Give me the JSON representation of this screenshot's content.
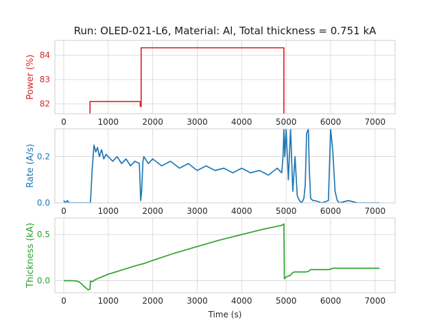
{
  "title": "Run: OLED-021-L6, Material: Al, Total thickness = 0.751 kA",
  "xlabel": "Time (s)",
  "chart_data": [
    {
      "type": "line",
      "ylabel": "Power (%)",
      "color": "#d62728",
      "xlim": [
        -200,
        7450
      ],
      "ylim": [
        81.6,
        84.6
      ],
      "xticks": [
        0,
        1000,
        2000,
        3000,
        4000,
        5000,
        6000,
        7000
      ],
      "yticks": [
        82,
        83,
        84
      ],
      "ytick_labels": [
        "82",
        "83",
        "84"
      ],
      "grid": true,
      "series": [
        {
          "x": [
            590,
            590,
            1720,
            1720,
            1740,
            1740,
            4950,
            4950
          ],
          "y": [
            81.6,
            82.1,
            82.1,
            81.9,
            81.9,
            84.3,
            84.3,
            81.6
          ]
        }
      ]
    },
    {
      "type": "line",
      "ylabel": "Rate (A/s)",
      "color": "#1f77b4",
      "xlim": [
        -200,
        7450
      ],
      "ylim": [
        0.0,
        0.32
      ],
      "xticks": [
        0,
        1000,
        2000,
        3000,
        4000,
        5000,
        6000,
        7000
      ],
      "yticks": [
        0.0,
        0.2
      ],
      "ytick_labels": [
        "0.0",
        "0.2"
      ],
      "grid": true,
      "series": [
        {
          "x": [
            0,
            40,
            80,
            120,
            200,
            600,
            640,
            680,
            720,
            760,
            800,
            850,
            900,
            950,
            1000,
            1100,
            1200,
            1300,
            1400,
            1500,
            1600,
            1700,
            1730,
            1750,
            1780,
            1800,
            1900,
            2000,
            2200,
            2400,
            2600,
            2800,
            3000,
            3200,
            3400,
            3600,
            3800,
            4000,
            4200,
            4400,
            4600,
            4800,
            4900,
            4930,
            4950,
            4970,
            5000,
            5050,
            5100,
            5150,
            5200,
            5250,
            5300,
            5350,
            5400,
            5430,
            5460,
            5500,
            5520,
            5550,
            5600,
            5650,
            5800,
            5950,
            6000,
            6050,
            6100,
            6150,
            6200,
            6400,
            6600,
            6800,
            7000,
            7100
          ],
          "y": [
            0.01,
            0.0,
            0.01,
            0.0,
            0.0,
            0.0,
            0.15,
            0.25,
            0.22,
            0.24,
            0.2,
            0.23,
            0.19,
            0.21,
            0.2,
            0.18,
            0.2,
            0.17,
            0.19,
            0.16,
            0.18,
            0.17,
            0.01,
            0.05,
            0.18,
            0.2,
            0.17,
            0.19,
            0.16,
            0.18,
            0.15,
            0.17,
            0.14,
            0.16,
            0.14,
            0.15,
            0.13,
            0.15,
            0.13,
            0.14,
            0.12,
            0.15,
            0.13,
            0.2,
            0.32,
            0.2,
            0.32,
            0.1,
            0.32,
            0.05,
            0.2,
            0.03,
            0.01,
            0.0,
            0.02,
            0.08,
            0.3,
            0.32,
            0.15,
            0.02,
            0.01,
            0.01,
            0.0,
            0.01,
            0.32,
            0.22,
            0.05,
            0.01,
            0.0,
            0.01,
            0.0,
            0.0,
            0.0,
            0.0
          ]
        }
      ]
    },
    {
      "type": "line",
      "ylabel": "Thickness (kA)",
      "color": "#2ca02c",
      "xlim": [
        -200,
        7450
      ],
      "ylim": [
        -0.13,
        0.68
      ],
      "xticks": [
        0,
        1000,
        2000,
        3000,
        4000,
        5000,
        6000,
        7000
      ],
      "yticks": [
        0.0,
        0.5
      ],
      "ytick_labels": [
        "0.0",
        "0.5"
      ],
      "grid": true,
      "series": [
        {
          "x": [
            0,
            100,
            200,
            300,
            350,
            400,
            450,
            500,
            550,
            590,
            600,
            650,
            700,
            800,
            1000,
            1200,
            1400,
            1600,
            1720,
            1750,
            1800,
            2000,
            2500,
            3000,
            3500,
            4000,
            4500,
            4900,
            4950,
            4960,
            5000,
            5100,
            5150,
            5200,
            5450,
            5500,
            5550,
            5950,
            6000,
            6050,
            7100
          ],
          "y": [
            0.0,
            0.0,
            0.0,
            -0.005,
            -0.015,
            -0.035,
            -0.06,
            -0.08,
            -0.1,
            -0.09,
            -0.005,
            -0.01,
            0.01,
            0.03,
            0.07,
            0.1,
            0.13,
            0.16,
            0.175,
            0.18,
            0.185,
            0.22,
            0.3,
            0.37,
            0.44,
            0.5,
            0.56,
            0.6,
            0.615,
            0.02,
            0.04,
            0.06,
            0.09,
            0.095,
            0.095,
            0.1,
            0.12,
            0.12,
            0.125,
            0.135,
            0.135
          ]
        }
      ]
    }
  ]
}
